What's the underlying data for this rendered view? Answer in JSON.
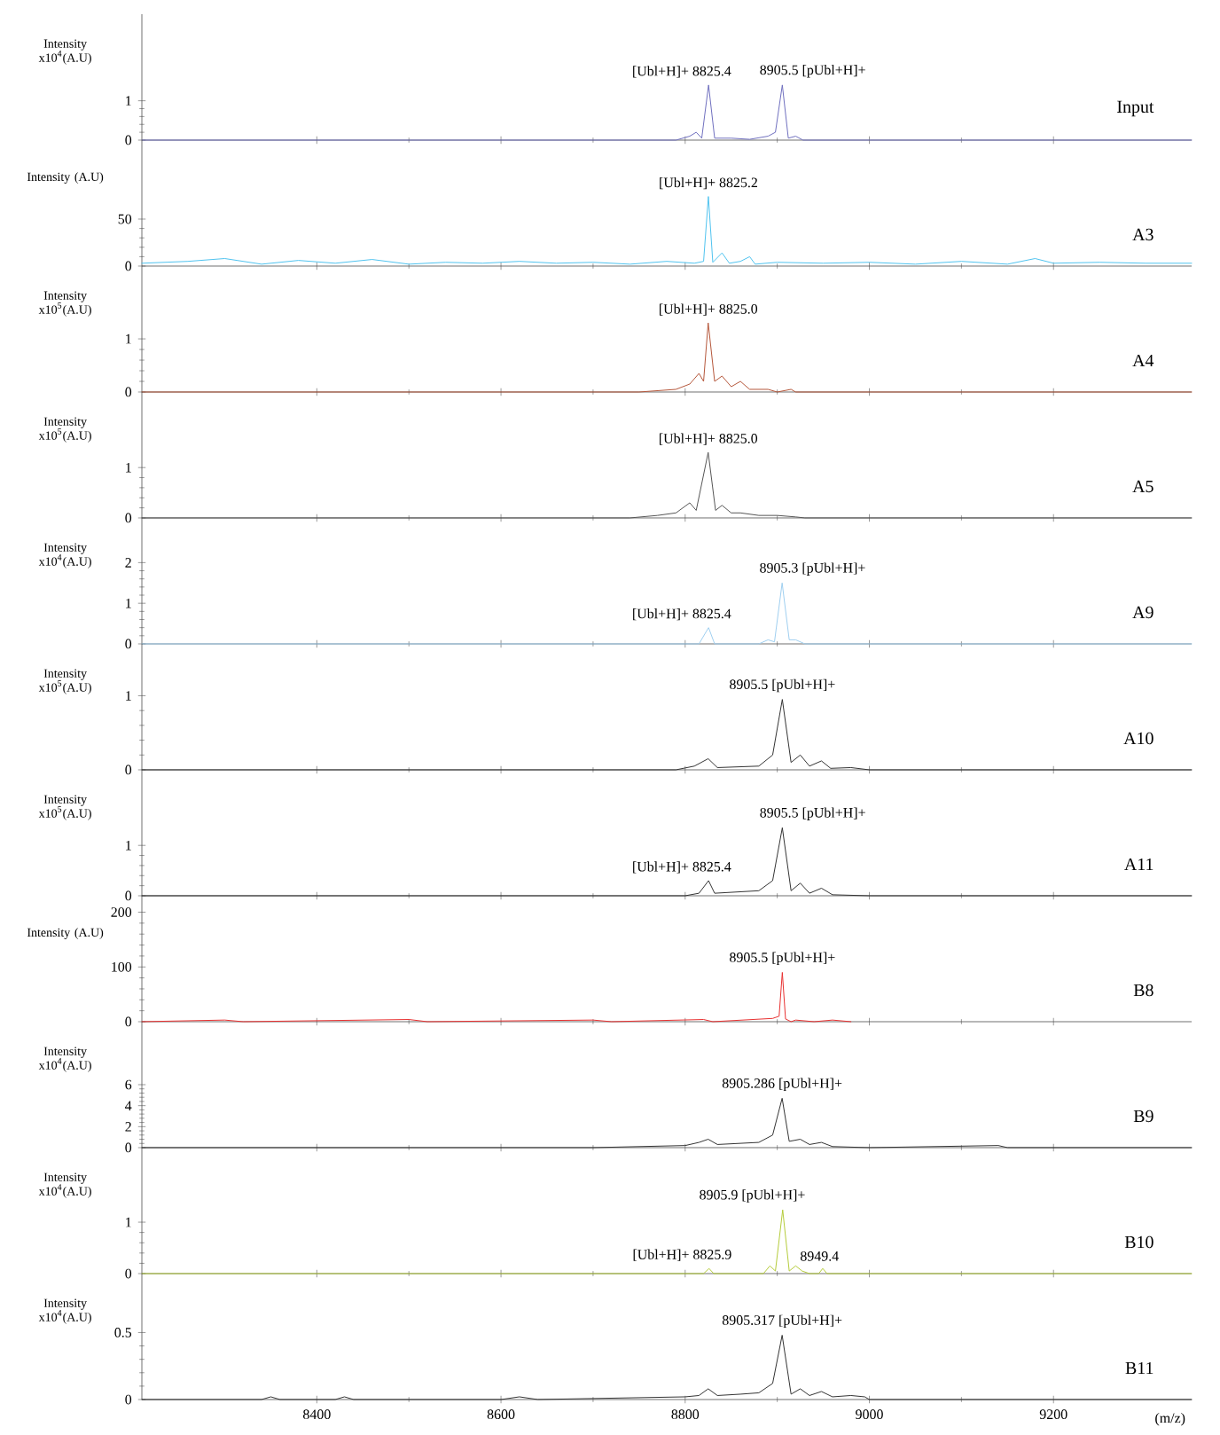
{
  "chart_data": [
    {
      "type": "line",
      "ylabel": "Intensity x10$^{4}$(A.U)",
      "xlim": [
        8210,
        9350
      ],
      "xticks": [
        8400,
        8600,
        8800,
        9000,
        9200
      ],
      "ylim": [
        0,
        3.2
      ],
      "yticks": [
        0,
        1
      ],
      "tick_labels": "y",
      "x": [
        8210,
        8790,
        8805,
        8812,
        8818,
        8825.4,
        8832,
        8850,
        8870,
        8890,
        8898,
        8905.5,
        8912,
        8920,
        8928,
        9350
      ],
      "series": [
        {
          "name": "Input",
          "color": "#6f6fbf",
          "values": [
            0,
            0,
            0.1,
            0.2,
            0.05,
            1.4,
            0.05,
            0.05,
            0.02,
            0.1,
            0.2,
            1.4,
            0.05,
            0.1,
            0,
            0
          ]
        }
      ],
      "annotations": [
        {
          "text": "[Ubl+H]+ 8825.4",
          "x": 8825.4,
          "y": 1.4
        },
        {
          "text": "8905.5 [pUbl+H]+",
          "x": 8905.5,
          "y": 1.4
        }
      ]
    },
    {
      "type": "line",
      "ylabel": "Intensity (A.U)",
      "xlim": [
        8210,
        9350
      ],
      "xticks": [
        8400,
        8600,
        8800,
        9000,
        9200
      ],
      "ylim": [
        0,
        134
      ],
      "yticks": [
        0,
        50
      ],
      "tick_labels": "y",
      "x": [
        8210,
        8260,
        8300,
        8340,
        8380,
        8420,
        8460,
        8500,
        8540,
        8580,
        8620,
        8660,
        8700,
        8740,
        8780,
        8810,
        8820,
        8825.2,
        8830,
        8840,
        8848,
        8860,
        8870,
        8876,
        8900,
        8950,
        9000,
        9050,
        9100,
        9150,
        9180,
        9200,
        9250,
        9300,
        9350
      ],
      "series": [
        {
          "name": "A3",
          "color": "#4fc3ef",
          "values": [
            3,
            5,
            8,
            2,
            6,
            3,
            7,
            2,
            4,
            3,
            5,
            3,
            4,
            2,
            5,
            3,
            5,
            74,
            4,
            14,
            3,
            5,
            10,
            2,
            4,
            3,
            4,
            2,
            5,
            2,
            8,
            3,
            4,
            3,
            3
          ]
        }
      ],
      "annotations": [
        {
          "text": "[Ubl+H]+ 8825.2",
          "x": 8825.2,
          "y": 74
        }
      ]
    },
    {
      "type": "line",
      "ylabel": "Intensity x10$^{5}$(A.U)",
      "xlim": [
        8210,
        9350
      ],
      "xticks": [
        8400,
        8600,
        8800,
        9000,
        9200
      ],
      "ylim": [
        0,
        2.37
      ],
      "yticks": [
        0,
        1
      ],
      "tick_labels": "y",
      "x": [
        8210,
        8750,
        8790,
        8805,
        8815,
        8820,
        8825,
        8832,
        8840,
        8850,
        8860,
        8870,
        8890,
        8900,
        8915,
        8920,
        9350
      ],
      "series": [
        {
          "name": "A4",
          "color": "#b5563a",
          "values": [
            0,
            0,
            0.05,
            0.15,
            0.35,
            0.2,
            1.3,
            0.2,
            0.3,
            0.1,
            0.2,
            0.05,
            0.05,
            0,
            0.05,
            0,
            0
          ]
        }
      ],
      "annotations": [
        {
          "text": "[Ubl+H]+ 8825.0",
          "x": 8825.0,
          "y": 1.3
        }
      ]
    },
    {
      "type": "line",
      "ylabel": "Intensity x10$^{5}$(A.U)",
      "xlim": [
        8210,
        9350
      ],
      "xticks": [
        8400,
        8600,
        8800,
        9000,
        9200
      ],
      "ylim": [
        0,
        2.5
      ],
      "yticks": [
        0,
        1
      ],
      "tick_labels": "y",
      "x": [
        8210,
        8740,
        8770,
        8790,
        8805,
        8812,
        8825,
        8833,
        8840,
        8850,
        8860,
        8880,
        8900,
        8920,
        8930,
        9350
      ],
      "series": [
        {
          "name": "A5",
          "color": "#555555",
          "values": [
            0,
            0,
            0.05,
            0.1,
            0.3,
            0.15,
            1.3,
            0.15,
            0.25,
            0.1,
            0.1,
            0.05,
            0.05,
            0.02,
            0,
            0
          ]
        }
      ],
      "annotations": [
        {
          "text": "[Ubl+H]+ 8825.0",
          "x": 8825.0,
          "y": 1.3
        }
      ]
    },
    {
      "type": "line",
      "ylabel": "Intensity x10$^{4}$(A.U)",
      "xlim": [
        8210,
        9350
      ],
      "xticks": [
        8400,
        8600,
        8800,
        9000,
        9200
      ],
      "ylim": [
        0,
        3.1
      ],
      "yticks": [
        0,
        1,
        2
      ],
      "tick_labels": "y",
      "x": [
        8210,
        8815,
        8825.4,
        8832,
        8880,
        8890,
        8897,
        8905.3,
        8913,
        8920,
        8930,
        9350
      ],
      "series": [
        {
          "name": "A9",
          "color": "#9fcff0",
          "values": [
            0,
            0,
            0.4,
            0,
            0,
            0.1,
            0.05,
            1.5,
            0.1,
            0.1,
            0,
            0
          ]
        }
      ],
      "annotations": [
        {
          "text": "[Ubl+H]+ 8825.4",
          "x": 8825.4,
          "y": 0.4
        },
        {
          "text": "8905.3 [pUbl+H]+",
          "x": 8905.3,
          "y": 1.5
        }
      ]
    },
    {
      "type": "line",
      "ylabel": "Intensity x10$^{5}$(A.U)",
      "xlim": [
        8210,
        9350
      ],
      "xticks": [
        8400,
        8600,
        8800,
        9000,
        9200
      ],
      "ylim": [
        0,
        1.7
      ],
      "yticks": [
        0,
        1
      ],
      "tick_labels": "y",
      "x": [
        8210,
        8790,
        8810,
        8825,
        8835,
        8880,
        8895,
        8905.5,
        8915,
        8925,
        8935,
        8948,
        8958,
        8980,
        9000,
        9350
      ],
      "series": [
        {
          "name": "A10",
          "color": "#333333",
          "values": [
            0,
            0,
            0.05,
            0.15,
            0.03,
            0.05,
            0.2,
            0.95,
            0.1,
            0.2,
            0.05,
            0.12,
            0.02,
            0.03,
            0,
            0
          ]
        }
      ],
      "annotations": [
        {
          "text": "8905.5 [pUbl+H]+",
          "x": 8905.5,
          "y": 0.95
        }
      ]
    },
    {
      "type": "line",
      "ylabel": "Intensity x10$^{5}$(A.U)",
      "xlim": [
        8210,
        9350
      ],
      "xticks": [
        8400,
        8600,
        8800,
        9000,
        9200
      ],
      "ylim": [
        0,
        2.5
      ],
      "yticks": [
        0,
        1
      ],
      "tick_labels": "y",
      "x": [
        8210,
        8800,
        8815,
        8825.4,
        8832,
        8880,
        8895,
        8905.5,
        8915,
        8925,
        8935,
        8948,
        8960,
        9000,
        9350
      ],
      "series": [
        {
          "name": "A11",
          "color": "#333333",
          "values": [
            0,
            0,
            0.05,
            0.3,
            0.05,
            0.1,
            0.3,
            1.35,
            0.1,
            0.25,
            0.05,
            0.15,
            0.02,
            0,
            0
          ]
        }
      ],
      "annotations": [
        {
          "text": "[Ubl+H]+ 8825.4",
          "x": 8825.4,
          "y": 0.3
        },
        {
          "text": "8905.5 [pUbl+H]+",
          "x": 8905.5,
          "y": 1.35
        }
      ]
    },
    {
      "type": "line",
      "ylabel": "Intensity (A.U)",
      "xlim": [
        8210,
        9350
      ],
      "xticks": [
        8400,
        8600,
        8800,
        9000,
        9200
      ],
      "ylim": [
        0,
        230
      ],
      "yticks": [
        0,
        100,
        200
      ],
      "tick_labels": "y",
      "x": [
        8210,
        8300,
        8320,
        8500,
        8520,
        8700,
        8720,
        8820,
        8830,
        8895,
        8902,
        8905.5,
        8909,
        8915,
        8920,
        8940,
        8960,
        8980
      ],
      "series": [
        {
          "name": "B8",
          "color": "#e83030",
          "values": [
            0,
            3,
            0,
            4,
            0,
            3,
            0,
            4,
            0,
            6,
            10,
            90,
            5,
            0,
            3,
            0,
            3,
            0
          ]
        }
      ],
      "annotations": [
        {
          "text": "8905.5 [pUbl+H]+",
          "x": 8905.5,
          "y": 90
        }
      ]
    },
    {
      "type": "line",
      "ylabel": "Intensity x10$^{4}$(A.U)",
      "xlim": [
        8210,
        9350
      ],
      "xticks": [
        8400,
        8600,
        8800,
        9000,
        9200
      ],
      "ylim": [
        0,
        12
      ],
      "yticks": [
        0,
        2,
        4,
        6
      ],
      "tick_labels": "y",
      "x": [
        8210,
        8700,
        8800,
        8815,
        8825,
        8835,
        8880,
        8895,
        8905.3,
        8913,
        8925,
        8935,
        8948,
        8960,
        9000,
        9140,
        9150,
        9350
      ],
      "series": [
        {
          "name": "B9",
          "color": "#333333",
          "values": [
            0,
            0,
            0.2,
            0.5,
            0.8,
            0.3,
            0.5,
            1.2,
            4.7,
            0.6,
            0.8,
            0.3,
            0.5,
            0.1,
            0,
            0.2,
            0,
            0
          ]
        }
      ],
      "annotations": [
        {
          "text": "8905.286 [pUbl+H]+",
          "x": 8905.286,
          "y": 4.7
        }
      ]
    },
    {
      "type": "line",
      "ylabel": "Intensity x10$^{4}$(A.U)",
      "xlim": [
        8210,
        9350
      ],
      "xticks": [
        8400,
        8600,
        8800,
        9000,
        9200
      ],
      "ylim": [
        0,
        2.45
      ],
      "yticks": [
        0,
        1
      ],
      "tick_labels": "y",
      "x": [
        8210,
        8820,
        8825.9,
        8831,
        8885,
        8892,
        8898,
        8905.9,
        8913,
        8920,
        8927,
        8935,
        8945,
        8949.4,
        8954,
        9350
      ],
      "series": [
        {
          "name": "B10",
          "color": "#b5cc3a",
          "values": [
            0,
            0,
            0.1,
            0,
            0,
            0.15,
            0.05,
            1.24,
            0.05,
            0.15,
            0.05,
            0,
            0,
            0.1,
            0,
            0
          ]
        }
      ],
      "annotations": [
        {
          "text": "[Ubl+H]+ 8825.9",
          "x": 8825.9,
          "y": 0.1
        },
        {
          "text": "8905.9 [pUbl+H]+",
          "x": 8905.9,
          "y": 1.24
        },
        {
          "text": "8949.4",
          "x": 8949.4,
          "y": 0.1
        }
      ]
    },
    {
      "type": "line",
      "ylabel": "Intensity x10$^{4}$(A.U)",
      "xlabel": "(m/z)",
      "xlim": [
        8210,
        9350
      ],
      "xticks": [
        8400,
        8600,
        8800,
        9000,
        9200
      ],
      "ylim": [
        0,
        0.94
      ],
      "yticks": [
        0,
        0.5
      ],
      "x": [
        8210,
        8340,
        8350,
        8360,
        8420,
        8430,
        8440,
        8600,
        8620,
        8640,
        8800,
        8815,
        8825,
        8835,
        8860,
        8880,
        8895,
        8905.317,
        8915,
        8925,
        8935,
        8948,
        8960,
        8980,
        8995,
        9000,
        9350
      ],
      "series": [
        {
          "name": "B11",
          "color": "#333333",
          "values": [
            0,
            0,
            0.02,
            0,
            0,
            0.02,
            0,
            0,
            0.02,
            0,
            0.02,
            0.03,
            0.08,
            0.03,
            0.04,
            0.05,
            0.12,
            0.48,
            0.04,
            0.08,
            0.03,
            0.06,
            0.02,
            0.03,
            0.02,
            0,
            0
          ]
        }
      ],
      "annotations": [
        {
          "text": "8905.317 [pUbl+H]+",
          "x": 8905.317,
          "y": 0.48
        }
      ]
    }
  ]
}
